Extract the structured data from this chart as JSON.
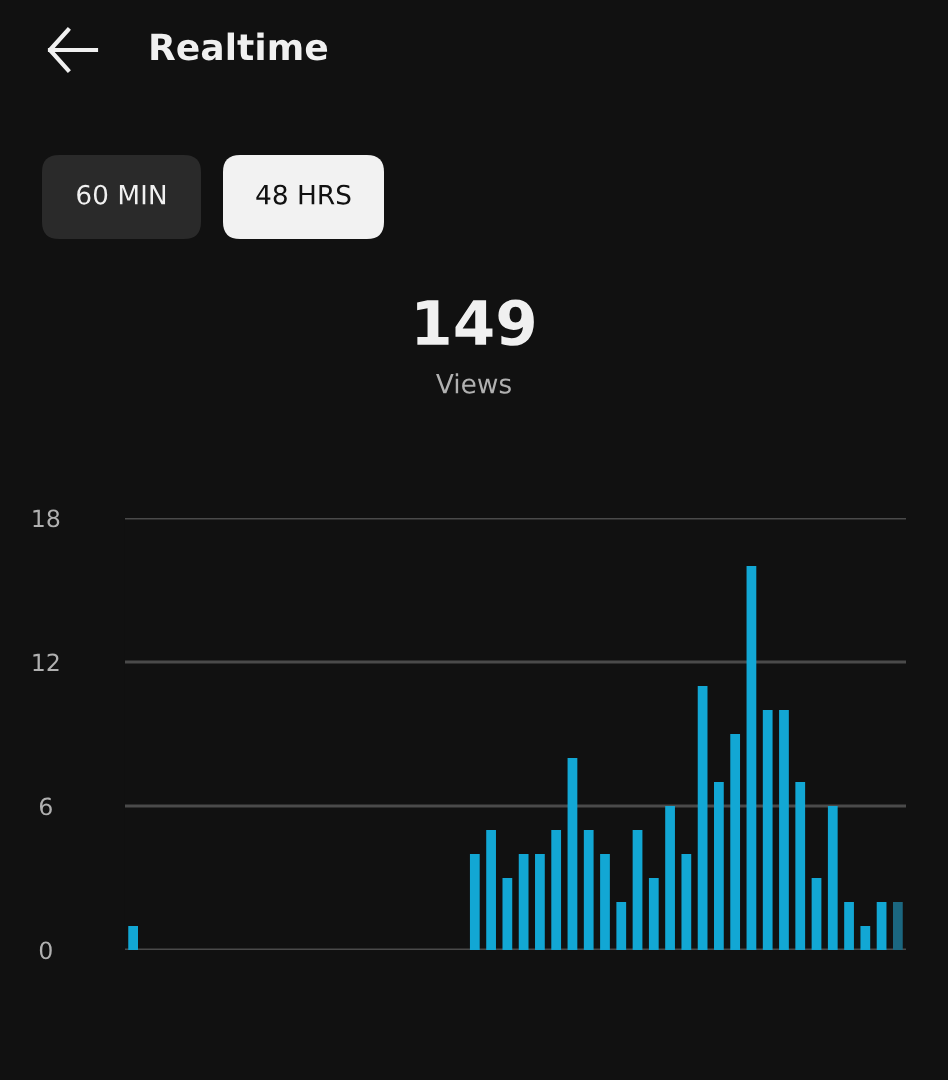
{
  "chart_data": {
    "type": "bar",
    "title": "Realtime",
    "subtitle": "149",
    "annotations": [
      "60 MIN",
      "48 HRS",
      "Views"
    ],
    "categories": [
      null,
      null,
      null,
      null,
      null,
      null,
      null,
      null,
      null,
      null,
      null,
      null,
      null,
      null,
      null,
      null,
      null,
      null,
      null,
      null,
      null,
      null,
      null,
      null,
      null,
      null,
      null,
      null,
      null,
      null,
      null,
      null,
      null,
      null,
      null,
      null,
      null,
      null,
      null,
      null,
      null,
      null,
      null,
      null,
      null,
      null,
      null,
      null
    ],
    "values": [
      1,
      0,
      0,
      0,
      0,
      0,
      0,
      0,
      0,
      0,
      0,
      0,
      0,
      0,
      0,
      0,
      0,
      0,
      0,
      0,
      0,
      4,
      5,
      3,
      4,
      4,
      5,
      8,
      5,
      4,
      2,
      5,
      3,
      6,
      4,
      11,
      7,
      9,
      16,
      10,
      10,
      7,
      3,
      6,
      2,
      1,
      2,
      2
    ],
    "colors": [
      "#12a7d4",
      "#12a7d4",
      "#12a7d4",
      "#12a7d4",
      "#12a7d4",
      "#12a7d4",
      "#12a7d4",
      "#12a7d4",
      "#12a7d4",
      "#12a7d4",
      "#12a7d4",
      "#12a7d4",
      "#12a7d4",
      "#12a7d4",
      "#12a7d4",
      "#12a7d4",
      "#12a7d4",
      "#12a7d4",
      "#12a7d4",
      "#12a7d4",
      "#12a7d4",
      "#12a7d4",
      "#12a7d4",
      "#12a7d4",
      "#12a7d4",
      "#12a7d4",
      "#12a7d4",
      "#12a7d4",
      "#12a7d4",
      "#12a7d4",
      "#12a7d4",
      "#12a7d4",
      "#12a7d4",
      "#12a7d4",
      "#12a7d4",
      "#12a7d4",
      "#12a7d4",
      "#12a7d4",
      "#12a7d4",
      "#12a7d4",
      "#12a7d4",
      "#12a7d4",
      "#12a7d4",
      "#12a7d4",
      "#12a7d4",
      "#12a7d4",
      "#12a7d4",
      "#1b6780"
    ],
    "ylim": [
      0,
      18
    ],
    "yticks": [
      0,
      6,
      12,
      18
    ],
    "grid": "y",
    "legend": false,
    "tick_labels": "y"
  }
}
